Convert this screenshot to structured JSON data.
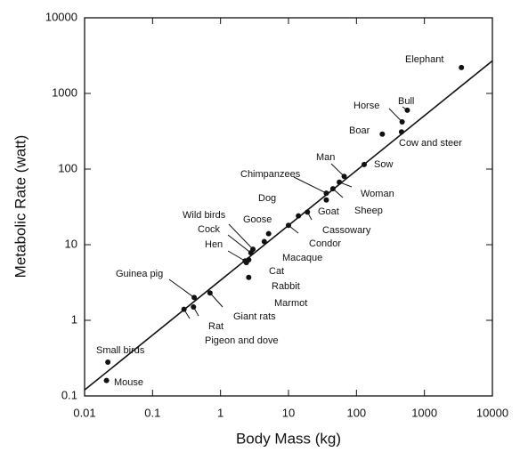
{
  "chart_data": {
    "type": "scatter",
    "x_label": "Body Mass (kg)",
    "y_label": "Metabolic Rate (watt)",
    "xscale": "log",
    "yscale": "log",
    "xlim": [
      0.01,
      10000
    ],
    "ylim": [
      0.1,
      10000
    ],
    "xticks": [
      0.01,
      0.1,
      1,
      10,
      100,
      1000,
      10000
    ],
    "yticks": [
      0.1,
      1,
      10,
      100,
      1000,
      10000
    ],
    "color": "#111111",
    "fit_line": {
      "x": [
        0.01,
        10000
      ],
      "y": [
        0.12,
        2700
      ]
    },
    "points": [
      {
        "label": "Elephant",
        "x": 3500,
        "y": 2200
      },
      {
        "label": "Bull",
        "x": 560,
        "y": 600
      },
      {
        "label": "Horse",
        "x": 470,
        "y": 420
      },
      {
        "label": "Boar",
        "x": 240,
        "y": 290
      },
      {
        "label": "Cow and steer",
        "x": 460,
        "y": 310
      },
      {
        "label": "Sow",
        "x": 130,
        "y": 115
      },
      {
        "label": "Man",
        "x": 66,
        "y": 80
      },
      {
        "label": "Chimpanzees",
        "x": 36,
        "y": 48
      },
      {
        "label": "Woman",
        "x": 56,
        "y": 67
      },
      {
        "label": "Sheep",
        "x": 45,
        "y": 55
      },
      {
        "label": "Dog",
        "x": 14,
        "y": 24
      },
      {
        "label": "Goat",
        "x": 36,
        "y": 39
      },
      {
        "label": "Cassowary",
        "x": 19,
        "y": 27
      },
      {
        "label": "Goose",
        "x": 5.1,
        "y": 14
      },
      {
        "label": "Condor",
        "x": 10,
        "y": 18
      },
      {
        "label": "Wild birds",
        "x": 3.0,
        "y": 8.7
      },
      {
        "label": "Cock",
        "x": 2.8,
        "y": 7.8
      },
      {
        "label": "Hen",
        "x": 2.3,
        "y": 6.1
      },
      {
        "label": "Macaque",
        "x": 4.4,
        "y": 11
      },
      {
        "label": "Cat",
        "x": 2.6,
        "y": 6.3
      },
      {
        "label": "Rabbit",
        "x": 2.4,
        "y": 5.8
      },
      {
        "label": "Marmot",
        "x": 2.6,
        "y": 3.7
      },
      {
        "label": "Guinea pig",
        "x": 0.41,
        "y": 2.0
      },
      {
        "label": "Giant rats",
        "x": 0.7,
        "y": 2.3
      },
      {
        "label": "Rat",
        "x": 0.4,
        "y": 1.5
      },
      {
        "label": "Pigeon and dove",
        "x": 0.29,
        "y": 1.4
      },
      {
        "label": "Small birds",
        "x": 0.022,
        "y": 0.28
      },
      {
        "label": "Mouse",
        "x": 0.021,
        "y": 0.16
      }
    ]
  }
}
